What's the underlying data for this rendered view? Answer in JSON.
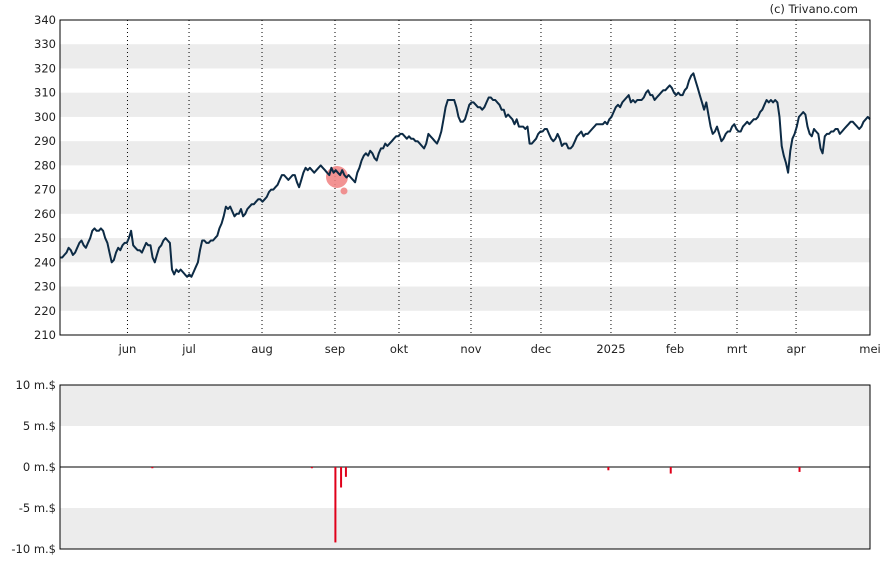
{
  "credit": "(c) Trivano.com",
  "colors": {
    "price_line": "#0d2b45",
    "band": "#ececec",
    "volume_bar": "#e0001a",
    "marker": "#f08080"
  },
  "chart_data": [
    {
      "type": "line",
      "ylim": [
        210,
        340
      ],
      "yticks": [
        210,
        220,
        230,
        240,
        250,
        260,
        270,
        280,
        290,
        300,
        310,
        320,
        330,
        340
      ],
      "x_labels": [
        "jun",
        "jul",
        "aug",
        "sep",
        "okt",
        "nov",
        "dec",
        "2025",
        "feb",
        "mrt",
        "apr",
        "mei"
      ],
      "grid": "horizontal-bands + dotted month verticals",
      "series": [
        {
          "values": [
            242,
            242,
            243,
            244,
            246,
            245,
            243,
            244,
            246,
            248,
            249,
            247,
            246,
            248,
            250,
            253,
            254,
            253,
            253,
            254,
            253,
            250,
            248,
            244,
            240,
            241,
            244,
            246,
            245,
            247,
            248,
            248,
            250,
            253,
            247,
            246,
            245,
            245,
            244,
            246,
            248,
            247,
            247,
            242,
            240,
            243,
            246,
            247,
            249,
            250,
            249,
            248,
            237,
            235,
            237,
            236,
            237,
            236,
            235,
            234,
            235,
            234,
            236,
            238,
            240,
            245,
            249,
            249,
            248,
            248,
            249,
            249,
            250,
            251,
            254,
            256,
            259,
            263,
            262,
            263,
            261,
            259,
            260,
            260,
            262,
            259,
            260,
            262,
            263,
            264,
            264,
            265,
            266,
            266,
            265,
            266,
            267,
            269,
            270,
            270,
            271,
            272,
            274,
            276,
            276,
            275,
            274,
            275,
            276,
            276,
            273,
            271,
            274,
            277,
            279,
            278,
            279,
            278,
            277,
            278,
            279,
            280,
            279,
            278,
            277,
            276,
            279,
            277,
            278,
            277,
            276,
            278,
            276,
            275,
            276,
            275,
            274,
            273,
            277,
            279,
            282,
            284,
            285,
            284,
            286,
            285,
            283,
            282,
            285,
            287,
            287,
            289,
            288,
            289,
            290,
            291,
            292,
            292,
            293,
            293,
            292,
            291,
            292,
            291,
            291,
            290,
            290,
            289,
            288,
            287,
            289,
            293,
            292,
            291,
            290,
            289,
            291,
            294,
            299,
            304,
            307,
            307,
            307,
            307,
            304,
            300,
            298,
            298,
            299,
            302,
            305,
            306,
            306,
            305,
            304,
            304,
            303,
            304,
            306,
            308,
            308,
            307,
            307,
            306,
            305,
            303,
            303,
            300,
            301,
            300,
            299,
            297,
            299,
            296,
            296,
            296,
            295,
            296,
            289,
            289,
            290,
            291,
            293,
            294,
            294,
            295,
            295,
            293,
            291,
            290,
            291,
            293,
            291,
            288,
            289,
            289,
            287,
            287,
            288,
            290,
            292,
            293,
            294,
            292,
            293,
            293,
            294,
            295,
            296,
            297,
            297,
            297,
            297,
            298,
            297,
            299,
            300,
            302,
            304,
            305,
            304,
            306,
            307,
            308,
            309,
            306,
            307,
            306,
            307,
            307,
            307,
            308,
            310,
            311,
            309,
            309,
            307,
            308,
            309,
            310,
            311,
            311,
            312,
            313,
            312,
            310,
            309,
            310,
            309,
            309,
            311,
            312,
            315,
            317,
            318,
            315,
            312,
            309,
            306,
            303,
            306,
            301,
            296,
            293,
            294,
            296,
            293,
            290,
            291,
            293,
            294,
            294,
            296,
            297,
            295,
            294,
            294,
            296,
            297,
            298,
            297,
            298,
            299,
            299,
            300,
            302,
            303,
            305,
            307,
            306,
            307,
            306,
            307,
            306,
            300,
            288,
            284,
            281,
            277,
            286,
            291,
            293,
            296,
            300,
            301,
            302,
            301,
            296,
            293,
            292,
            295,
            294,
            293,
            287,
            285,
            292,
            293,
            293,
            294,
            294,
            295,
            295,
            293,
            294,
            295,
            296,
            297,
            298,
            298,
            297,
            296,
            295,
            296,
            298,
            299,
            300,
            299
          ]
        }
      ]
    },
    {
      "type": "bar",
      "ylim": [
        -10,
        10
      ],
      "yticks": [
        "10 m.$",
        "5 m.$",
        "0 m.$",
        "-5 m.$",
        "-10 m.$"
      ],
      "series": [
        {
          "bars": [
            {
              "x": 0.114,
              "value": -0.15
            },
            {
              "x": 0.311,
              "value": -0.15
            },
            {
              "x": 0.34,
              "value": -9.2
            },
            {
              "x": 0.347,
              "value": -2.5
            },
            {
              "x": 0.353,
              "value": -1.2
            },
            {
              "x": 0.677,
              "value": -0.4
            },
            {
              "x": 0.754,
              "value": -0.8
            },
            {
              "x": 0.913,
              "value": -0.6
            }
          ]
        }
      ]
    }
  ]
}
